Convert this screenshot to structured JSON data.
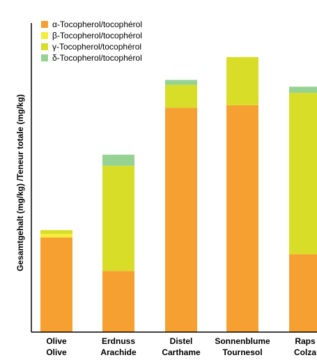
{
  "chart_data": {
    "type": "bar",
    "stacked": true,
    "title": "",
    "xlabel": "",
    "ylabel": "Gesamtgehalt (mg/kg) /Teneur totale (mg/kg)",
    "categories": [
      {
        "line1": "Olive",
        "line2": "Olive"
      },
      {
        "line1": "Erdnuss",
        "line2": "Arachide"
      },
      {
        "line1": "Distel",
        "line2": "Carthame"
      },
      {
        "line1": "Sonnenblume",
        "line2": "Tournesol"
      },
      {
        "line1": "Raps",
        "line2": "Colza"
      }
    ],
    "series": [
      {
        "name": "α-Tocopherol/tocophérol",
        "color": "#f7a032",
        "values": [
          153,
          99,
          363,
          367,
          126
        ]
      },
      {
        "name": "β-Tocopherol/tocophérol",
        "color": "#f5ec3c",
        "values": [
          6,
          0,
          0,
          0,
          0
        ]
      },
      {
        "name": "γ-Tocopherol/tocophérol",
        "color": "#d8de28",
        "values": [
          6,
          170,
          37,
          78,
          261
        ]
      },
      {
        "name": "δ-Tocopherol/tocophérol",
        "color": "#96d393",
        "values": [
          0,
          18,
          8,
          0,
          10
        ]
      }
    ],
    "ylim": [
      0,
      500
    ],
    "grid": false,
    "legend_position": "top-left"
  }
}
